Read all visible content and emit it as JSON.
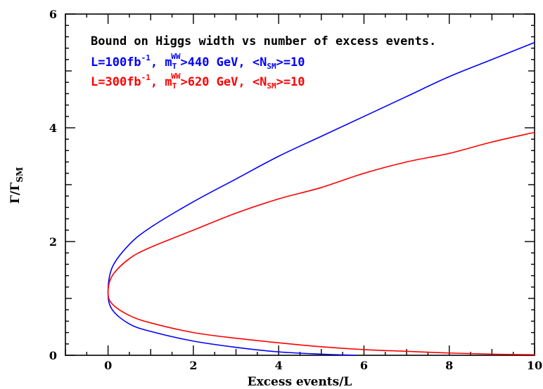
{
  "chart_data": {
    "type": "line",
    "xlabel": "Excess events/L",
    "ylabel": "Γ/Γ",
    "ylabel_sub": "SM",
    "xlim": [
      -1,
      10
    ],
    "ylim": [
      0,
      6
    ],
    "xticks": [
      0,
      2,
      4,
      6,
      8,
      10
    ],
    "yticks": [
      0,
      2,
      4,
      6
    ],
    "grid": false,
    "annotations": {
      "title": "Bound on Higgs width vs number of excess events.",
      "blue_line": {
        "p1": "L=100fb",
        "sup1": "-1",
        "p2": ", m",
        "sub_t": "T",
        "sup_ww": "WW",
        "p3": ">440 GeV, <N",
        "sub_sm": "SM",
        "p4": ">=10"
      },
      "red_line": {
        "p1": "L=300fb",
        "sup1": "-1",
        "p2": ", m",
        "sub_t": "T",
        "sup_ww": "WW",
        "p3": ">620 GeV, <N",
        "sub_sm": "SM",
        "p4": ">=10"
      }
    },
    "series": [
      {
        "color": "#0000ff",
        "upper": {
          "x": [
            0,
            0.1,
            0.5,
            1,
            2,
            3,
            4,
            5,
            6,
            7,
            8,
            9,
            10
          ],
          "y": [
            1.1,
            1.55,
            1.95,
            2.25,
            2.7,
            3.1,
            3.5,
            3.85,
            4.2,
            4.55,
            4.9,
            5.2,
            5.5
          ]
        },
        "lower": {
          "x": [
            0,
            0.1,
            0.5,
            1,
            2,
            3,
            4,
            5,
            5.8
          ],
          "y": [
            1.1,
            0.8,
            0.55,
            0.42,
            0.25,
            0.14,
            0.06,
            0.02,
            0.0
          ]
        }
      },
      {
        "color": "#ff0000",
        "upper": {
          "x": [
            0,
            0.1,
            0.5,
            1,
            2,
            3,
            4,
            5,
            6,
            7,
            8,
            9,
            10
          ],
          "y": [
            1.1,
            1.4,
            1.7,
            1.9,
            2.2,
            2.5,
            2.75,
            2.95,
            3.2,
            3.4,
            3.55,
            3.75,
            3.92
          ]
        },
        "lower": {
          "x": [
            0,
            0.1,
            0.5,
            1,
            2,
            3,
            4,
            5,
            6,
            7,
            8,
            9,
            10
          ],
          "y": [
            1.1,
            0.9,
            0.7,
            0.57,
            0.4,
            0.3,
            0.22,
            0.15,
            0.1,
            0.07,
            0.04,
            0.02,
            0.01
          ]
        }
      }
    ]
  }
}
